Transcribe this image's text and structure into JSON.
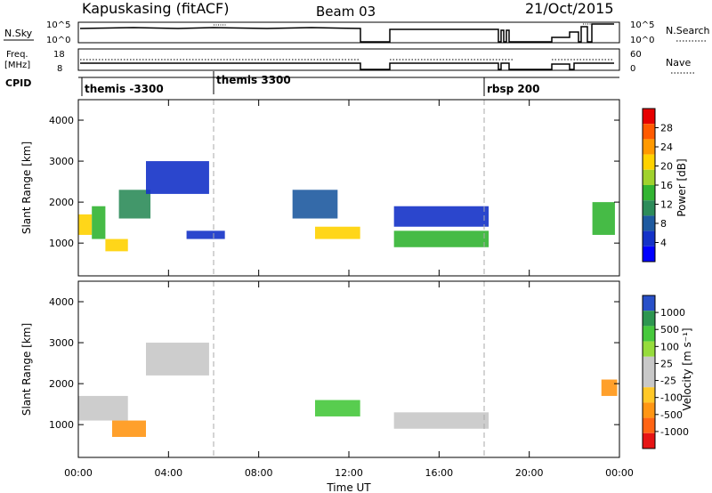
{
  "header": {
    "station": "Kapuskasing (fitACF)",
    "beam": "Beam 03",
    "date": "21/Oct/2015"
  },
  "nsky_panel": {
    "left_label": "N.Sky",
    "right_label": "N.Search",
    "left_ticks": [
      "10^5",
      "10^0"
    ],
    "right_ticks": [
      "10^5",
      "10^0"
    ]
  },
  "freq_panel": {
    "left_label_line1": "Freq.",
    "left_label_line2": "[MHz]",
    "right_label": "Nave",
    "left_ticks": [
      "18",
      "8"
    ],
    "right_ticks": [
      "60",
      "0"
    ]
  },
  "cpid": {
    "label": "CPID",
    "segments": [
      {
        "name": "themis -3300",
        "start_hour": 0.0
      },
      {
        "name": "themis 3300",
        "start_hour": 6.0
      },
      {
        "name": "rbsp 200",
        "start_hour": 18.0
      }
    ]
  },
  "power_panel": {
    "ylabel": "Slant Range [km]",
    "colorbar_label": "Power [dB]",
    "colorbar_ticks": [
      "28",
      "24",
      "20",
      "16",
      "12",
      "8",
      "4"
    ],
    "colorbar_colors": [
      "#e60000",
      "#ff5a00",
      "#ff9900",
      "#ffd200",
      "#a0d22d",
      "#32b432",
      "#2d8c5a",
      "#1e5aa0",
      "#1432c8",
      "#0000ff"
    ]
  },
  "velocity_panel": {
    "ylabel": "Slant Range [km]",
    "colorbar_label": "Velocity [m s⁻¹]",
    "colorbar_ticks": [
      "1000",
      "500",
      "100",
      "25",
      "-25",
      "-100",
      "-500",
      "-1000"
    ],
    "colorbar_colors": [
      "#2850c8",
      "#2d9650",
      "#46c83c",
      "#96dc3c",
      "#c8c8c8",
      "#c8c8c8",
      "#ffc828",
      "#ff9614",
      "#ff6414",
      "#e61414"
    ]
  },
  "x_axis": {
    "label": "Time UT",
    "tick_labels": [
      "00:00",
      "04:00",
      "08:00",
      "12:00",
      "16:00",
      "20:00",
      "00:00"
    ]
  },
  "chart_data": {
    "type": "heatmap",
    "x_range_hours": [
      0,
      24
    ],
    "y_range_km": [
      200,
      4500
    ],
    "y_ticks_km": [
      1000,
      2000,
      3000,
      4000
    ],
    "x_ticks_hours": [
      0,
      4,
      8,
      12,
      16,
      20,
      24
    ],
    "data_gaps_hours": [
      [
        12.5,
        13.8
      ],
      [
        19.1,
        21.9
      ]
    ],
    "power_regions": [
      {
        "t0": 0.0,
        "t1": 0.6,
        "r0": 1200,
        "r1": 1700,
        "db": 20
      },
      {
        "t0": 0.6,
        "t1": 1.2,
        "r0": 1100,
        "r1": 1900,
        "db": 14
      },
      {
        "t0": 1.2,
        "t1": 2.2,
        "r0": 800,
        "r1": 1100,
        "db": 22
      },
      {
        "t0": 1.8,
        "t1": 3.2,
        "r0": 1600,
        "r1": 2300,
        "db": 12
      },
      {
        "t0": 3.0,
        "t1": 5.8,
        "r0": 2200,
        "r1": 3000,
        "db": 6
      },
      {
        "t0": 4.8,
        "t1": 6.5,
        "r0": 1100,
        "r1": 1300,
        "db": 6
      },
      {
        "t0": 10.5,
        "t1": 12.5,
        "r0": 1100,
        "r1": 1400,
        "db": 20
      },
      {
        "t0": 9.5,
        "t1": 11.5,
        "r0": 1600,
        "r1": 2300,
        "db": 8
      },
      {
        "t0": 14.0,
        "t1": 18.2,
        "r0": 900,
        "r1": 1300,
        "db": 16
      },
      {
        "t0": 14.0,
        "t1": 18.2,
        "r0": 1400,
        "r1": 1900,
        "db": 6
      },
      {
        "t0": 22.8,
        "t1": 23.8,
        "r0": 1200,
        "r1": 2000,
        "db": 14
      }
    ],
    "velocity_regions": [
      {
        "t0": 0.0,
        "t1": 2.2,
        "r0": 1100,
        "r1": 1700,
        "v": 0
      },
      {
        "t0": 1.5,
        "t1": 3.0,
        "r0": 700,
        "r1": 1100,
        "v": -300
      },
      {
        "t0": 3.0,
        "t1": 5.8,
        "r0": 2200,
        "r1": 3000,
        "v": 0
      },
      {
        "t0": 10.5,
        "t1": 12.5,
        "r0": 1200,
        "r1": 1600,
        "v": 150
      },
      {
        "t0": 14.0,
        "t1": 18.2,
        "r0": 900,
        "r1": 1300,
        "v": 0
      },
      {
        "t0": 23.2,
        "t1": 23.9,
        "r0": 1700,
        "r1": 2100,
        "v": -300
      }
    ]
  }
}
